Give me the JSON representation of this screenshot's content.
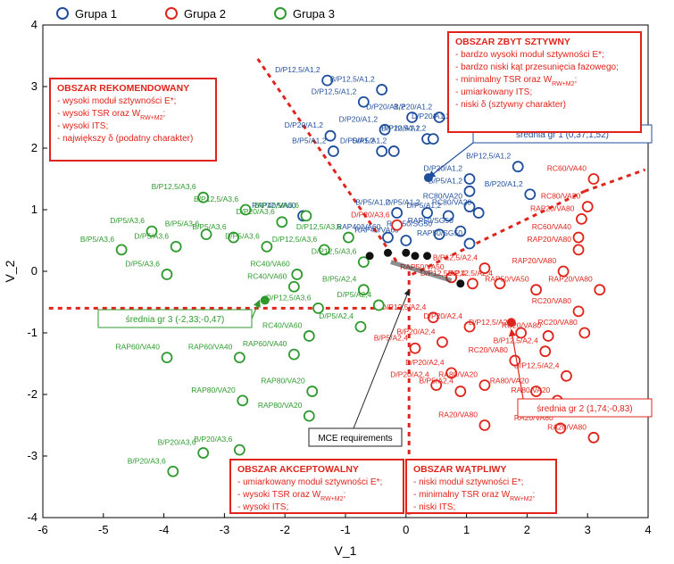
{
  "chart_data": {
    "type": "scatter",
    "xlabel": "V_1",
    "ylabel": "V_2",
    "xlim": [
      -6,
      4
    ],
    "ylim": [
      -4,
      4
    ],
    "xticks": [
      -6,
      -5,
      -4,
      -3,
      -2,
      -1,
      0,
      1,
      2,
      3,
      4
    ],
    "yticks": [
      -4,
      -3,
      -2,
      -1,
      0,
      1,
      2,
      3,
      4
    ],
    "legend_position": "top-left",
    "series": [
      {
        "name": "Grupa 1",
        "color": "#1f4e9c",
        "points": [
          {
            "x": -1.3,
            "y": 3.1,
            "label": "D/P12,5/A1,2"
          },
          {
            "x": -0.4,
            "y": 2.95,
            "label": "B/P12,5/A1,2"
          },
          {
            "x": -0.7,
            "y": 2.75,
            "label": "D/P12,5/A1,2"
          },
          {
            "x": 0.1,
            "y": 2.5,
            "label": "D/P20/A1,2"
          },
          {
            "x": 0.55,
            "y": 2.5,
            "label": "B/P20/A1,2"
          },
          {
            "x": -1.25,
            "y": 2.2,
            "label": "D/P20/A1,2"
          },
          {
            "x": -0.35,
            "y": 2.3,
            "label": "D/P20/A1,2"
          },
          {
            "x": 0.85,
            "y": 2.35,
            "label": "D/P20/A1,2"
          },
          {
            "x": 0.35,
            "y": 2.15,
            "label": "D/P20/A1,2"
          },
          {
            "x": -1.2,
            "y": 1.95,
            "label": "B/P5/A1,2"
          },
          {
            "x": -0.4,
            "y": 1.95,
            "label": "D/P5/A1,2"
          },
          {
            "x": -0.2,
            "y": 1.95,
            "label": "D/P5/A1,2"
          },
          {
            "x": 0.45,
            "y": 2.15,
            "label": "B/P12,5/A1,2"
          },
          {
            "x": 1.85,
            "y": 1.7,
            "label": "B/P12,5/A1,2"
          },
          {
            "x": 1.05,
            "y": 1.5,
            "label": "D/P20/A1,2"
          },
          {
            "x": 1.05,
            "y": 1.3,
            "label": "B/P5/A1,2"
          },
          {
            "x": 2.05,
            "y": 1.25,
            "label": "B/P20/A1,2"
          },
          {
            "x": 1.05,
            "y": 1.05,
            "label": "RC80/VA20"
          },
          {
            "x": 1.2,
            "y": 0.95,
            "label": "RC80/VA20"
          },
          {
            "x": 0.35,
            "y": 0.95,
            "label": "D/P5/A1,2"
          },
          {
            "x": 0.7,
            "y": 0.9,
            "label": "D/P5/A1,2"
          },
          {
            "x": -0.15,
            "y": 0.95,
            "label": "B/P5/A1,2"
          },
          {
            "x": -0.3,
            "y": 0.55,
            "label": "RAP40/VA60"
          },
          {
            "x": 0.0,
            "y": 0.5,
            "label": "RAP40/VA60"
          },
          {
            "x": 0.55,
            "y": 0.6,
            "label": "RAP50/SG50"
          },
          {
            "x": 0.9,
            "y": 0.65,
            "label": "RAP50/SG50"
          },
          {
            "x": 1.05,
            "y": 0.45,
            "label": "RAP50/SG50"
          },
          {
            "x": -1.7,
            "y": 0.9,
            "label": "RAP40/VA60"
          }
        ],
        "mean": {
          "x": 0.37,
          "y": 1.52,
          "label": "średnia gr 1 (0,37;1,52)"
        }
      },
      {
        "name": "Grupa 2",
        "color": "#e0241b",
        "points": [
          {
            "x": 3.1,
            "y": 1.5,
            "label": "RC60/VA40"
          },
          {
            "x": 3.0,
            "y": 1.05,
            "label": "RC80/VA20"
          },
          {
            "x": 2.9,
            "y": 0.85,
            "label": "RAP20/VA80"
          },
          {
            "x": 2.85,
            "y": 0.55,
            "label": "RC60/VA40"
          },
          {
            "x": 2.85,
            "y": 0.35,
            "label": "RAP20/VA80"
          },
          {
            "x": 2.6,
            "y": 0.0,
            "label": "RAP20/VA80"
          },
          {
            "x": 3.2,
            "y": -0.3,
            "label": "RAP20/VA80"
          },
          {
            "x": 2.85,
            "y": -0.65,
            "label": "RC20/VA80"
          },
          {
            "x": 2.95,
            "y": -1.0,
            "label": "RC20/VA80"
          },
          {
            "x": 2.35,
            "y": -1.05,
            "label": "RC20/VA80"
          },
          {
            "x": 0.75,
            "y": -0.1,
            "label": "RAP50/VA50"
          },
          {
            "x": 1.1,
            "y": -0.2,
            "label": "D/P12,5/A2,4"
          },
          {
            "x": 1.55,
            "y": -0.2,
            "label": "B/P12,5/A2,4"
          },
          {
            "x": 1.3,
            "y": 0.05,
            "label": "B/P12,5/A2,4"
          },
          {
            "x": 2.15,
            "y": -0.3,
            "label": "RAP50/VA50"
          },
          {
            "x": 0.45,
            "y": -0.75,
            "label": "D/P12,5/A2,4"
          },
          {
            "x": 1.05,
            "y": -0.9,
            "label": "D/P20/A2,4"
          },
          {
            "x": 1.9,
            "y": -1.0,
            "label": "D/P12,5/A2,4"
          },
          {
            "x": 2.3,
            "y": -1.3,
            "label": "B/P12,5/A2,4"
          },
          {
            "x": 2.65,
            "y": -1.7,
            "label": "D/P12,5/A2,4"
          },
          {
            "x": 0.6,
            "y": -1.15,
            "label": "B/P20/A2,4"
          },
          {
            "x": 0.75,
            "y": -1.65,
            "label": "D/P20/A2,4"
          },
          {
            "x": 0.5,
            "y": -1.85,
            "label": "D/P20/A2,4"
          },
          {
            "x": 0.9,
            "y": -1.95,
            "label": "B/P5/A2,4"
          },
          {
            "x": 1.3,
            "y": -1.85,
            "label": "RA80/VA20"
          },
          {
            "x": 1.8,
            "y": -1.45,
            "label": "RC20/VA80"
          },
          {
            "x": 2.15,
            "y": -1.95,
            "label": "RA80/VA20"
          },
          {
            "x": 2.5,
            "y": -2.1,
            "label": "RA80/VA20"
          },
          {
            "x": 1.3,
            "y": -2.5,
            "label": "RA20/VA80"
          },
          {
            "x": 2.55,
            "y": -2.55,
            "label": "RA20/VA80"
          },
          {
            "x": 3.1,
            "y": -2.7,
            "label": "RA20/VA80"
          },
          {
            "x": -0.15,
            "y": 0.75,
            "label": "D/P20/A3,6"
          },
          {
            "x": 0.15,
            "y": -1.25,
            "label": "B/P5/A2,4"
          }
        ],
        "mean": {
          "x": 1.74,
          "y": -0.83,
          "label": "średnia gr 2 (1,74;-0,83)"
        }
      },
      {
        "name": "Grupa 3",
        "color": "#2e9a2e",
        "points": [
          {
            "x": -3.35,
            "y": 1.2,
            "label": "B/P12,5/A3,6"
          },
          {
            "x": -2.65,
            "y": 1.0,
            "label": "B/P12,5/A3,6"
          },
          {
            "x": -2.05,
            "y": 0.8,
            "label": "D/P20/A3,6"
          },
          {
            "x": -1.65,
            "y": 0.9,
            "label": "B/P12,5/A3,6"
          },
          {
            "x": -4.2,
            "y": 0.65,
            "label": "D/P5/A3,6"
          },
          {
            "x": -3.3,
            "y": 0.6,
            "label": "B/P5/A3,6"
          },
          {
            "x": -2.85,
            "y": 0.55,
            "label": "B/P5/A3,6"
          },
          {
            "x": -4.7,
            "y": 0.35,
            "label": "B/P5/A3,6"
          },
          {
            "x": -3.8,
            "y": 0.4,
            "label": "D/P5/A3,6"
          },
          {
            "x": -2.3,
            "y": 0.4,
            "label": "D/P5/A3,6"
          },
          {
            "x": -3.95,
            "y": -0.05,
            "label": "D/P5/A3,6"
          },
          {
            "x": -1.8,
            "y": -0.05,
            "label": "RC40/VA60"
          },
          {
            "x": -0.95,
            "y": 0.55,
            "label": "D/P12,5/A3,6"
          },
          {
            "x": -1.35,
            "y": 0.35,
            "label": "D/P12,5/A3,6"
          },
          {
            "x": -0.7,
            "y": 0.15,
            "label": "D/P12,5/A3,6"
          },
          {
            "x": -1.85,
            "y": -0.25,
            "label": "RC40/VA60"
          },
          {
            "x": -0.7,
            "y": -0.3,
            "label": "B/P5/A2,4"
          },
          {
            "x": -0.45,
            "y": -0.55,
            "label": "D/P5/A2,4"
          },
          {
            "x": -1.45,
            "y": -0.6,
            "label": "D/P12,5/A3,6"
          },
          {
            "x": -0.75,
            "y": -0.9,
            "label": "D/P5/A2,4"
          },
          {
            "x": -1.6,
            "y": -1.05,
            "label": "RC40/VA60"
          },
          {
            "x": -1.85,
            "y": -1.35,
            "label": "RAP60/VA40"
          },
          {
            "x": -2.75,
            "y": -1.4,
            "label": "RAP60/VA40"
          },
          {
            "x": -3.95,
            "y": -1.4,
            "label": "RAP60/VA40"
          },
          {
            "x": -1.55,
            "y": -1.95,
            "label": "RAP80/VA20"
          },
          {
            "x": -2.7,
            "y": -2.1,
            "label": "RAP80/VA20"
          },
          {
            "x": -1.6,
            "y": -2.35,
            "label": "RAP80/VA20"
          },
          {
            "x": -2.75,
            "y": -2.9,
            "label": "B/P20/A3,6"
          },
          {
            "x": -3.35,
            "y": -2.95,
            "label": "B/P20/A3,6"
          },
          {
            "x": -3.85,
            "y": -3.25,
            "label": "B/P20/A3,6"
          }
        ],
        "mean": {
          "x": -2.33,
          "y": -0.47,
          "label": "średnia gr 3 (-2,33;-0,47)"
        }
      }
    ],
    "mce_points": [
      {
        "x": -0.6,
        "y": 0.25
      },
      {
        "x": -0.3,
        "y": 0.3
      },
      {
        "x": 0.0,
        "y": 0.3
      },
      {
        "x": 0.15,
        "y": 0.25
      },
      {
        "x": 0.35,
        "y": 0.25
      },
      {
        "x": 0.9,
        "y": -0.2
      }
    ],
    "mce_label": "MCE requirements",
    "region_boxes": [
      {
        "title": "OBSZAR ZBYT SZTYWNY",
        "lines": [
          "- bardzo wysoki moduł sztywności E*;",
          "- bardzo niski kąt przesunięcia fazowego;",
          "- minimalny TSR oraz W",
          "- umiarkowany ITS;",
          "- niski δ (sztywny charakter)"
        ],
        "subscript": "RW+M2",
        "subscript_line": 2
      },
      {
        "title": "OBSZAR REKOMENDOWANY",
        "lines": [
          "- wysoki moduł sztywności E*;",
          "- wysoki TSR oraz W",
          "- wysoki ITS;",
          "- największy δ (podatny charakter)"
        ],
        "subscript": "RW+M2",
        "subscript_line": 1
      },
      {
        "title": "OBSZAR AKCEPTOWALNY",
        "lines": [
          "- umiarkowany moduł sztywności E*;",
          "- wysoki TSR oraz W",
          "- wysoki ITS;"
        ],
        "subscript": "RW+M2",
        "subscript_line": 1
      },
      {
        "title": "OBSZAR WĄTPLIWY",
        "lines": [
          "- niski moduł sztywności E*;",
          "- minimalny TSR oraz W",
          "- niski ITS;"
        ],
        "subscript": "RW+M2",
        "subscript_line": 1
      }
    ]
  }
}
